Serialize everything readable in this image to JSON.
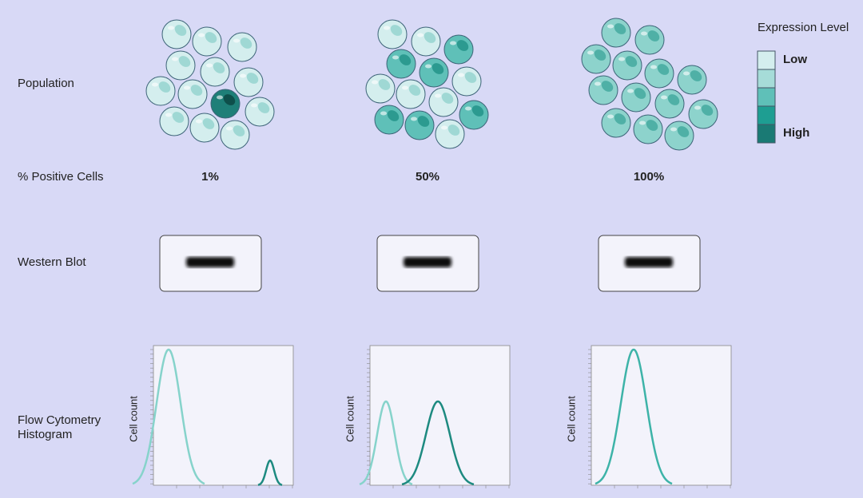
{
  "legend": {
    "title": "Expression Level",
    "low": "Low",
    "high": "High"
  },
  "rows": {
    "population": "Population",
    "positive": "% Positive Cells",
    "western": "Western Blot",
    "flow": [
      "Flow Cytometry",
      "Histogram"
    ]
  },
  "columns": [
    {
      "percent": "1%",
      "axis_label": "Cell count"
    },
    {
      "percent": "50%",
      "axis_label": "Cell count"
    },
    {
      "percent": "100%",
      "axis_label": "Cell count"
    }
  ]
}
